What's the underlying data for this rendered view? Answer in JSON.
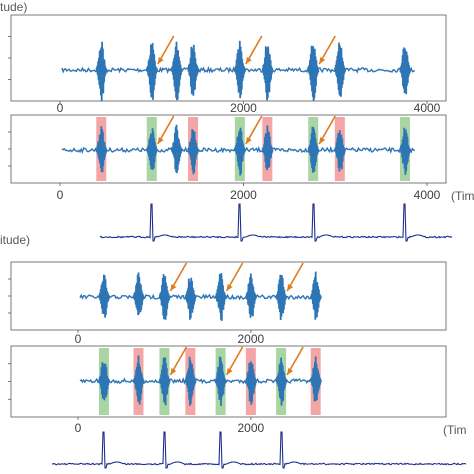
{
  "figure": {
    "top_ylabel_fragment": "tude)",
    "bottom_ylabel_fragment": "itude)",
    "xlabel_fragment": "(Tim",
    "xlabel_fragment_bottom": "(Tim",
    "colors": {
      "signal": "#2e75b6",
      "arrow": "#e07b1f",
      "red_band": "#f4a6a6",
      "green_band": "#a8d5a2",
      "ecg": "#1f2f8f",
      "axis": "#595959"
    }
  },
  "chart_data": [
    {
      "type": "line",
      "panel": "A1",
      "xlim": [
        0,
        4000
      ],
      "xticks": [
        "0",
        "2000",
        "4000"
      ],
      "bursts_x": [
        450,
        1000,
        1270,
        1450,
        1960,
        2260,
        2760,
        3050,
        3760
      ],
      "arrows_x": [
        1000,
        1960,
        2760
      ]
    },
    {
      "type": "line",
      "panel": "A2",
      "xlim": [
        0,
        4000
      ],
      "xticks": [
        "0",
        "2000",
        "4000"
      ],
      "bursts_x": [
        450,
        1000,
        1270,
        1450,
        1960,
        2260,
        2760,
        3050,
        3760
      ],
      "arrows_x": [
        1000,
        1960,
        2760
      ],
      "red_bands_x": [
        450,
        1450,
        2260,
        3050
      ],
      "green_bands_x": [
        1000,
        1960,
        2760,
        3760
      ]
    },
    {
      "type": "line",
      "panel": "A-ECG",
      "r_peaks_x": [
        1000,
        1960,
        2760,
        3760
      ]
    },
    {
      "type": "line",
      "panel": "B1",
      "xlim": [
        0,
        2800
      ],
      "xticks": [
        "0",
        "2000"
      ],
      "bursts_x": [
        300,
        700,
        1000,
        1300,
        1650,
        2000,
        2350,
        2750
      ],
      "arrows_x": [
        1000,
        1650,
        2350
      ]
    },
    {
      "type": "line",
      "panel": "B2",
      "xlim": [
        0,
        2800
      ],
      "xticks": [
        "0",
        "2000"
      ],
      "bursts_x": [
        300,
        700,
        1000,
        1300,
        1650,
        2000,
        2350,
        2750
      ],
      "arrows_x": [
        1000,
        1650,
        2350
      ],
      "red_bands_x": [
        700,
        1300,
        2000,
        2750
      ],
      "green_bands_x": [
        300,
        1000,
        1650,
        2350
      ]
    },
    {
      "type": "line",
      "panel": "B-ECG",
      "r_peaks_x": [
        300,
        1000,
        1650,
        2350
      ]
    }
  ]
}
